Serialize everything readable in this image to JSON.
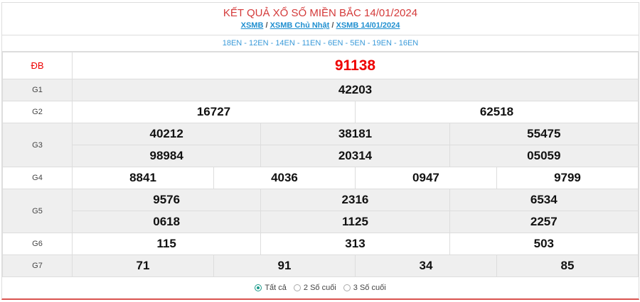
{
  "header": {
    "title": "KẾT QUẢ XỔ SỐ MIỀN BẮC 14/01/2024",
    "links": [
      "XSMB",
      "XSMB Chủ Nhật",
      "XSMB 14/01/2024"
    ],
    "separator": "/"
  },
  "codes": "18EN - 12EN - 14EN - 11EN - 6EN - 5EN - 19EN - 16EN",
  "prizes": {
    "db": {
      "label": "ĐB",
      "values": [
        "91138"
      ]
    },
    "g1": {
      "label": "G1",
      "values": [
        "42203"
      ]
    },
    "g2": {
      "label": "G2",
      "values": [
        "16727",
        "62518"
      ]
    },
    "g3": {
      "label": "G3",
      "values": [
        "40212",
        "38181",
        "55475",
        "98984",
        "20314",
        "05059"
      ]
    },
    "g4": {
      "label": "G4",
      "values": [
        "8841",
        "4036",
        "0947",
        "9799"
      ]
    },
    "g5": {
      "label": "G5",
      "values": [
        "9576",
        "2316",
        "6534",
        "0618",
        "1125",
        "2257"
      ]
    },
    "g6": {
      "label": "G6",
      "values": [
        "115",
        "313",
        "503"
      ]
    },
    "g7": {
      "label": "G7",
      "values": [
        "71",
        "91",
        "34",
        "85"
      ]
    }
  },
  "filter": {
    "options": [
      "Tất cả",
      "2 Số cuối",
      "3 Số cuối"
    ],
    "selected": "Tất cả"
  },
  "colors": {
    "accent": "#d43a3a",
    "link": "#1f8fd0",
    "radio": "#1a9a8a"
  }
}
